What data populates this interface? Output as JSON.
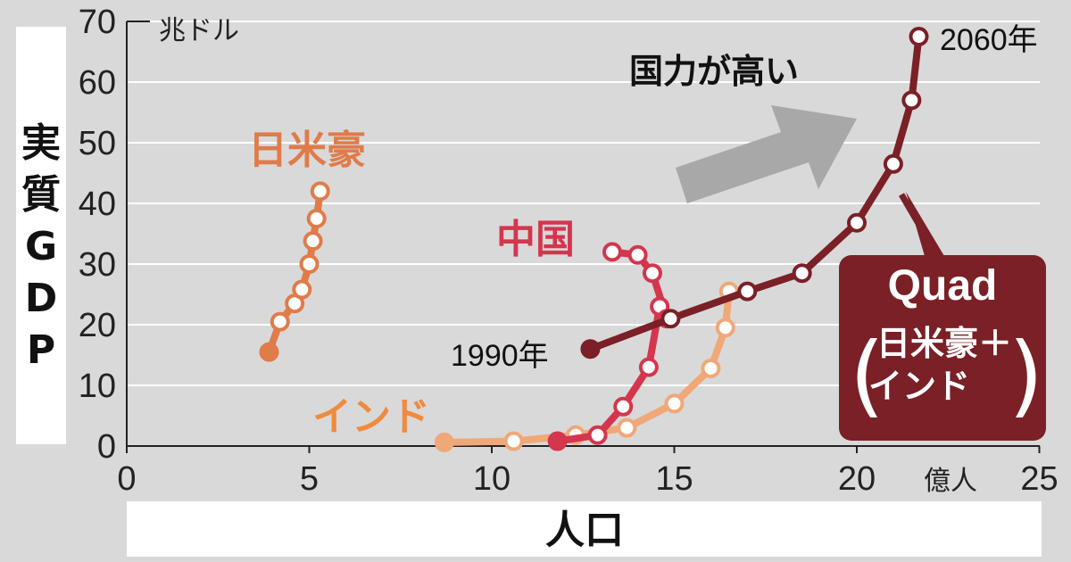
{
  "chart_data": {
    "type": "line",
    "xlabel": "人口",
    "ylabel": "実質GDP",
    "x_unit": "億人",
    "y_unit": "兆ドル",
    "xlim": [
      0,
      25
    ],
    "ylim": [
      0,
      70
    ],
    "x_ticks": [
      "0",
      "5",
      "10",
      "15",
      "20",
      "25"
    ],
    "y_ticks": [
      "0",
      "10",
      "20",
      "30",
      "40",
      "50",
      "60",
      "70"
    ],
    "annotation": "国力が高い",
    "start_label": "1990年",
    "end_label": "2060年",
    "quad_box": {
      "title": "Quad",
      "line1": "日米豪＋",
      "line2": "インド"
    },
    "series": [
      {
        "name": "日米豪",
        "color": "#e07b4a",
        "points": [
          [
            3.9,
            15.5
          ],
          [
            4.2,
            20.5
          ],
          [
            4.6,
            23.5
          ],
          [
            4.8,
            25.8
          ],
          [
            5.0,
            30
          ],
          [
            5.1,
            33.8
          ],
          [
            5.2,
            37.5
          ],
          [
            5.3,
            42
          ]
        ]
      },
      {
        "name": "中国",
        "color": "#d4364e",
        "points": [
          [
            11.8,
            0.8
          ],
          [
            12.9,
            1.8
          ],
          [
            13.6,
            6.5
          ],
          [
            14.3,
            13
          ],
          [
            14.6,
            23
          ],
          [
            14.8,
            21
          ],
          [
            14.4,
            28.5
          ],
          [
            14.0,
            31.5
          ],
          [
            13.3,
            32
          ]
        ]
      },
      {
        "name": "インド",
        "color": "#f0a878",
        "points": [
          [
            8.7,
            0.6
          ],
          [
            10.6,
            0.8
          ],
          [
            12.3,
            1.8
          ],
          [
            13.7,
            3.0
          ],
          [
            15.0,
            7
          ],
          [
            16.0,
            12.8
          ],
          [
            16.4,
            19.5
          ],
          [
            16.5,
            25.5
          ]
        ]
      },
      {
        "name": "Quad",
        "color": "#7a2026",
        "points": [
          [
            12.7,
            16
          ],
          [
            14.9,
            21
          ],
          [
            17.0,
            25.5
          ],
          [
            18.5,
            28.5
          ],
          [
            20.0,
            36.8
          ],
          [
            21.0,
            46.5
          ],
          [
            21.5,
            57
          ],
          [
            21.7,
            67.5
          ]
        ]
      }
    ]
  }
}
